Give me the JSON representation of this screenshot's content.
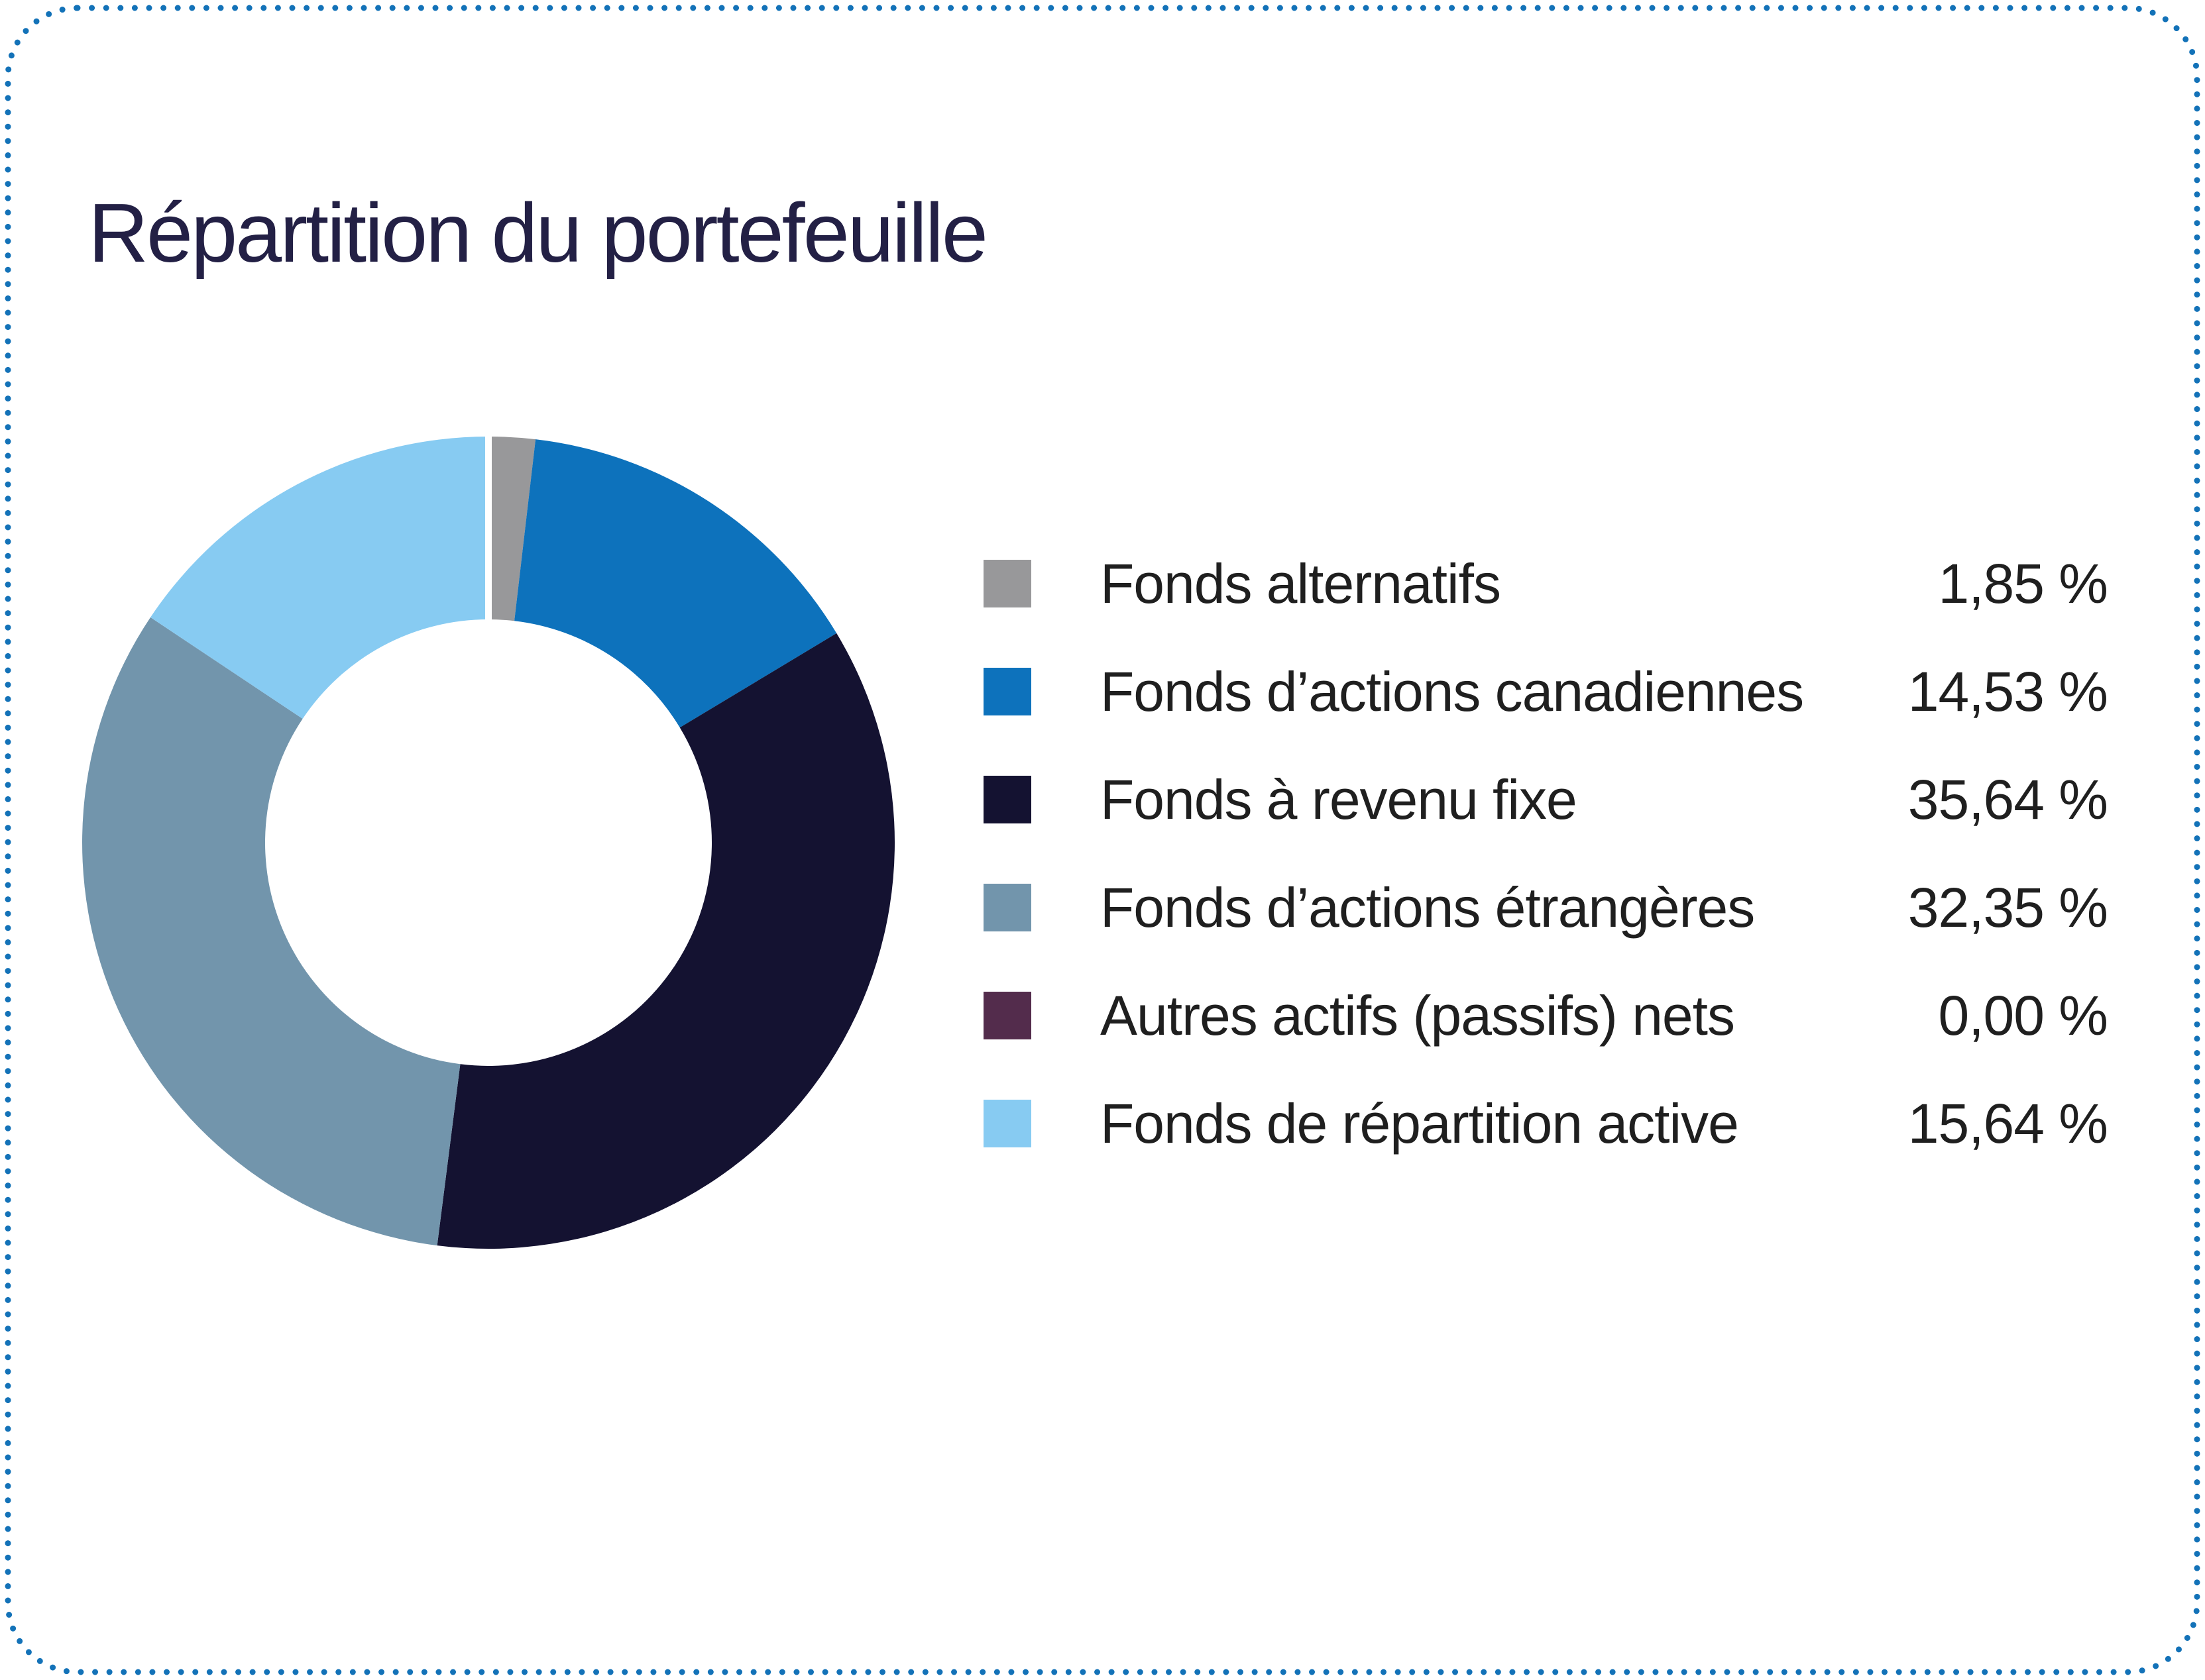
{
  "card": {
    "title": "Répartition du portefeuille"
  },
  "colors": {
    "background": "#FFFFFF",
    "border_dots": "#1372B8",
    "title_text": "#232045",
    "legend_text": "#1F1F1F",
    "donut_seam": "#FFFFFF"
  },
  "chart_data": {
    "type": "pie",
    "subtype": "donut",
    "title": "Répartition du portefeuille",
    "unit": "%",
    "number_format": "fr (comma decimal, space before %)",
    "start_angle_deg": 0,
    "direction": "clockwise",
    "inner_radius_ratio": 0.55,
    "legend_position": "right",
    "slices": [
      {
        "label": "Fonds alternatifs",
        "value": 1.85,
        "display_value": "1,85 %",
        "color": "#98989A"
      },
      {
        "label": "Fonds d’actions canadiennes",
        "value": 14.53,
        "display_value": "14,53 %",
        "color": "#0D72BC"
      },
      {
        "label": "Fonds à revenu fixe",
        "value": 35.64,
        "display_value": "35,64 %",
        "color": "#141231"
      },
      {
        "label": "Fonds d’actions étrangères",
        "value": 32.35,
        "display_value": "32,35 %",
        "color": "#7295AC"
      },
      {
        "label": "Autres actifs (passifs) nets",
        "value": 0.0,
        "display_value": "0,00 %",
        "color": "#532C4C"
      },
      {
        "label": "Fonds de répartition active",
        "value": 15.64,
        "display_value": "15,64 %",
        "color": "#87CBF2"
      }
    ]
  }
}
